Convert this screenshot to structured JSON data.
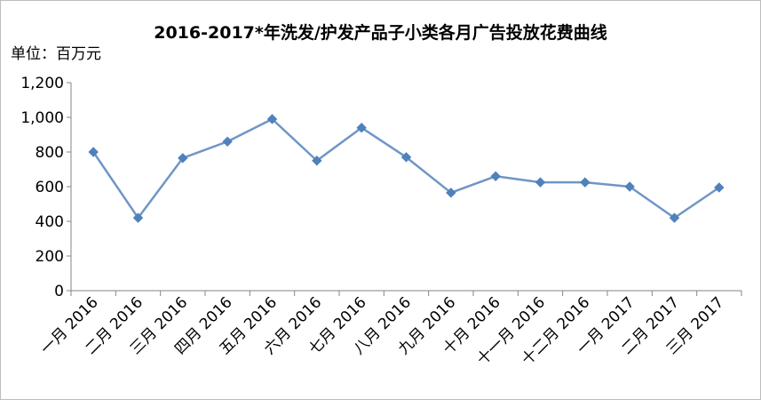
{
  "chart_data": {
    "type": "line",
    "title": "2016-2017*年洗发/护发产品子小类各月广告投放花费曲线",
    "unit_label": "单位：百万元",
    "categories": [
      "一月 2016",
      "二月 2016",
      "三月 2016",
      "四月 2016",
      "五月 2016",
      "六月 2016",
      "七月 2016",
      "八月 2016",
      "九月 2016",
      "十月 2016",
      "十一月 2016",
      "十二月 2016",
      "一月 2017",
      "二月 2017",
      "三月 2017"
    ],
    "values": [
      800,
      420,
      765,
      860,
      990,
      750,
      940,
      770,
      565,
      660,
      625,
      625,
      600,
      420,
      595
    ],
    "y_ticks": [
      "0",
      "200",
      "400",
      "600",
      "800",
      "1,000",
      "1,200"
    ],
    "ylim": [
      0,
      1200
    ],
    "grid": false,
    "line_color": "#6f96c6",
    "marker_color": "#4f81bd"
  }
}
